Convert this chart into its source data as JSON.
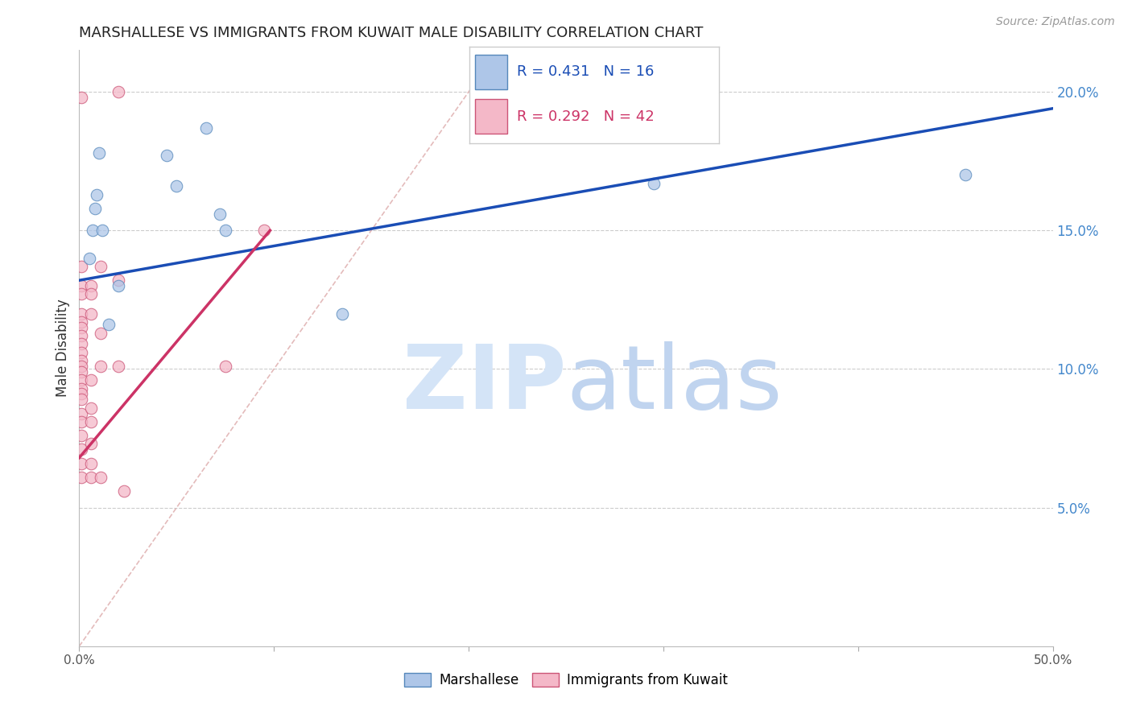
{
  "title": "MARSHALLESE VS IMMIGRANTS FROM KUWAIT MALE DISABILITY CORRELATION CHART",
  "source": "Source: ZipAtlas.com",
  "ylabel": "Male Disability",
  "right_yticks": [
    "20.0%",
    "15.0%",
    "10.0%",
    "5.0%"
  ],
  "right_ytick_vals": [
    0.2,
    0.15,
    0.1,
    0.05
  ],
  "xlim": [
    0.0,
    0.5
  ],
  "ylim": [
    0.0,
    0.215
  ],
  "legend_blue_r": "R = 0.431",
  "legend_blue_n": "N = 16",
  "legend_pink_r": "R = 0.292",
  "legend_pink_n": "N = 42",
  "blue_fill_color": "#aec6e8",
  "pink_fill_color": "#f4b8c8",
  "blue_edge_color": "#5588bb",
  "pink_edge_color": "#cc5577",
  "blue_line_color": "#1a4db5",
  "pink_line_color": "#cc3366",
  "diagonal_color": "#ddaaaa",
  "blue_scatter": [
    [
      0.005,
      0.14
    ],
    [
      0.007,
      0.15
    ],
    [
      0.008,
      0.158
    ],
    [
      0.009,
      0.163
    ],
    [
      0.01,
      0.178
    ],
    [
      0.012,
      0.15
    ],
    [
      0.015,
      0.116
    ],
    [
      0.02,
      0.13
    ],
    [
      0.045,
      0.177
    ],
    [
      0.05,
      0.166
    ],
    [
      0.065,
      0.187
    ],
    [
      0.072,
      0.156
    ],
    [
      0.075,
      0.15
    ],
    [
      0.135,
      0.12
    ],
    [
      0.295,
      0.167
    ],
    [
      0.455,
      0.17
    ]
  ],
  "pink_scatter": [
    [
      0.001,
      0.198
    ],
    [
      0.001,
      0.137
    ],
    [
      0.001,
      0.13
    ],
    [
      0.001,
      0.127
    ],
    [
      0.001,
      0.12
    ],
    [
      0.001,
      0.117
    ],
    [
      0.001,
      0.115
    ],
    [
      0.001,
      0.112
    ],
    [
      0.001,
      0.109
    ],
    [
      0.001,
      0.106
    ],
    [
      0.001,
      0.103
    ],
    [
      0.001,
      0.101
    ],
    [
      0.001,
      0.099
    ],
    [
      0.001,
      0.096
    ],
    [
      0.001,
      0.093
    ],
    [
      0.001,
      0.091
    ],
    [
      0.001,
      0.089
    ],
    [
      0.001,
      0.084
    ],
    [
      0.001,
      0.081
    ],
    [
      0.001,
      0.076
    ],
    [
      0.001,
      0.071
    ],
    [
      0.001,
      0.066
    ],
    [
      0.001,
      0.061
    ],
    [
      0.006,
      0.13
    ],
    [
      0.006,
      0.127
    ],
    [
      0.006,
      0.12
    ],
    [
      0.006,
      0.096
    ],
    [
      0.006,
      0.086
    ],
    [
      0.006,
      0.081
    ],
    [
      0.006,
      0.073
    ],
    [
      0.006,
      0.066
    ],
    [
      0.006,
      0.061
    ],
    [
      0.011,
      0.137
    ],
    [
      0.011,
      0.113
    ],
    [
      0.011,
      0.101
    ],
    [
      0.011,
      0.061
    ],
    [
      0.02,
      0.2
    ],
    [
      0.02,
      0.132
    ],
    [
      0.02,
      0.101
    ],
    [
      0.023,
      0.056
    ],
    [
      0.075,
      0.101
    ],
    [
      0.095,
      0.15
    ]
  ],
  "blue_line_x": [
    0.0,
    0.5
  ],
  "blue_line_y": [
    0.132,
    0.194
  ],
  "pink_line_x": [
    0.0,
    0.098
  ],
  "pink_line_y": [
    0.068,
    0.15
  ],
  "diag_line_x": [
    0.0,
    0.215
  ],
  "diag_line_y": [
    0.0,
    0.215
  ],
  "watermark_zip": "ZIP",
  "watermark_atlas": "atlas",
  "watermark_zip_color": "#d4e4f7",
  "watermark_atlas_color": "#c0d4ef"
}
